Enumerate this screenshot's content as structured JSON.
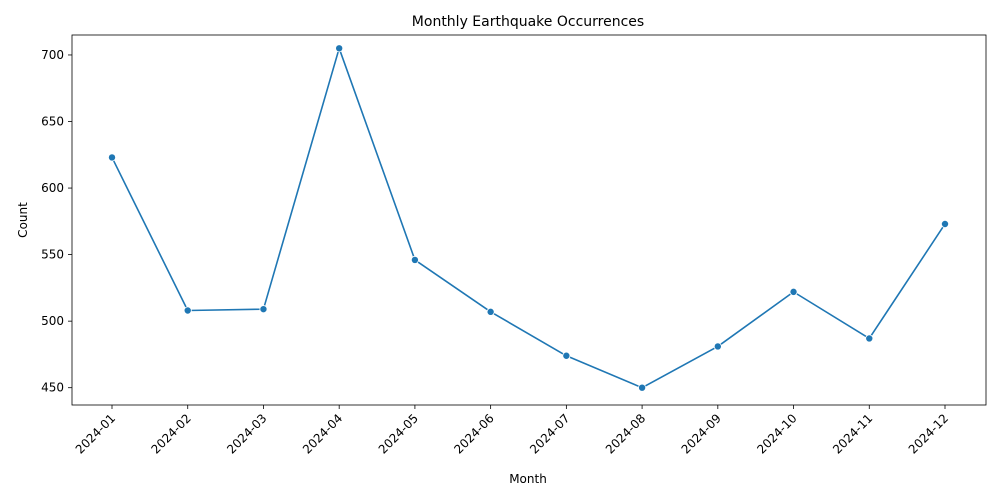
{
  "chart_data": {
    "type": "line",
    "title": "Monthly Earthquake Occurrences",
    "xlabel": "Month",
    "ylabel": "Count",
    "categories": [
      "2024-01",
      "2024-02",
      "2024-03",
      "2024-04",
      "2024-05",
      "2024-06",
      "2024-07",
      "2024-08",
      "2024-09",
      "2024-10",
      "2024-11",
      "2024-12"
    ],
    "series": [
      {
        "values": [
          623,
          508,
          509,
          705,
          546,
          507,
          474,
          450,
          481,
          522,
          487,
          573
        ]
      }
    ],
    "ylim": [
      437,
      715
    ],
    "yticks": [
      450,
      500,
      550,
      600,
      650,
      700
    ],
    "grid": false,
    "marker": "circle",
    "line_color": "#1f77b4"
  }
}
